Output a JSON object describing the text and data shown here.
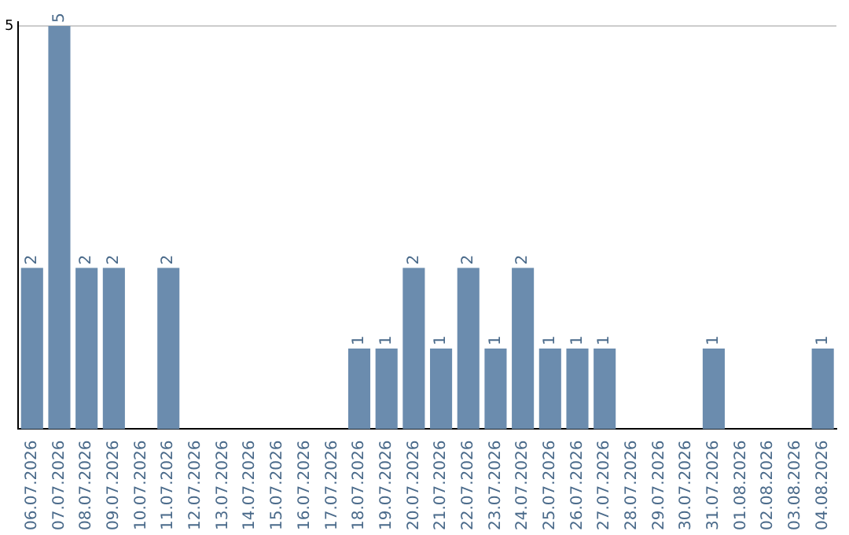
{
  "chart_data": {
    "type": "bar",
    "categories": [
      "06.07.2026",
      "07.07.2026",
      "08.07.2026",
      "09.07.2026",
      "10.07.2026",
      "11.07.2026",
      "12.07.2026",
      "13.07.2026",
      "14.07.2026",
      "15.07.2026",
      "16.07.2026",
      "17.07.2026",
      "18.07.2026",
      "19.07.2026",
      "20.07.2026",
      "21.07.2026",
      "22.07.2026",
      "23.07.2026",
      "24.07.2026",
      "25.07.2026",
      "26.07.2026",
      "27.07.2026",
      "28.07.2026",
      "29.07.2026",
      "30.07.2026",
      "31.07.2026",
      "01.08.2026",
      "02.08.2026",
      "03.08.2026",
      "04.08.2026"
    ],
    "values": [
      2,
      5,
      2,
      2,
      0,
      2,
      0,
      0,
      0,
      0,
      0,
      0,
      1,
      1,
      2,
      1,
      2,
      1,
      2,
      1,
      1,
      1,
      0,
      0,
      0,
      1,
      0,
      0,
      0,
      1
    ],
    "value_labels": [
      "2",
      "5",
      "2",
      "2",
      null,
      "2",
      null,
      null,
      null,
      null,
      null,
      null,
      "1",
      "1",
      "2",
      "1",
      "2",
      "1",
      "2",
      "1",
      "1",
      "1",
      null,
      null,
      null,
      "1",
      null,
      null,
      null,
      "1"
    ],
    "color": "#6b8cae",
    "ylim": [
      0,
      5.05
    ],
    "yticks": [
      5
    ],
    "grid": "y",
    "legend": false
  }
}
